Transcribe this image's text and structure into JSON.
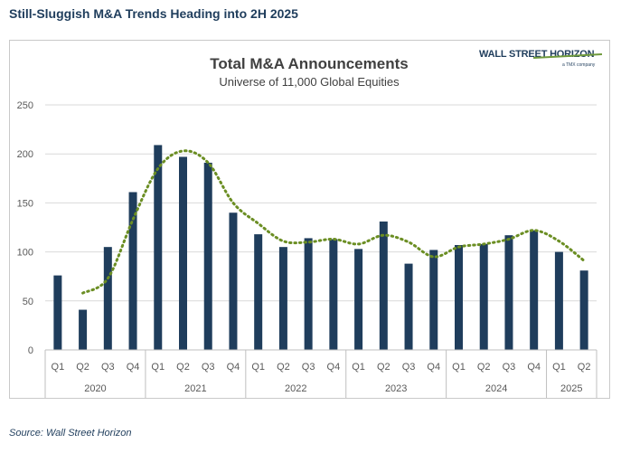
{
  "header": {
    "title": "Still-Sluggish M&A Trends Heading into 2H 2025"
  },
  "logo": {
    "main": "WALL STREET HORIZON",
    "sub": "a TMX company"
  },
  "footer": {
    "source": "Source: Wall Street Horizon"
  },
  "colors": {
    "bar": "#1f3d5c",
    "trend": "#6b8e23",
    "axis": "#bfbfbf",
    "grid": "#d9d9d9",
    "text": "#595959"
  },
  "chart_data": {
    "type": "bar",
    "title": "Total M&A Announcements",
    "subtitle": "Universe of 11,000 Global Equities",
    "ylim": [
      0,
      250
    ],
    "yticks": [
      0,
      50,
      100,
      150,
      200,
      250
    ],
    "grid": true,
    "categories": [
      "Q1",
      "Q2",
      "Q3",
      "Q4",
      "Q1",
      "Q2",
      "Q3",
      "Q4",
      "Q1",
      "Q2",
      "Q3",
      "Q4",
      "Q1",
      "Q2",
      "Q3",
      "Q4",
      "Q1",
      "Q2",
      "Q3",
      "Q4",
      "Q1",
      "Q2"
    ],
    "groups": [
      {
        "label": "2020",
        "count": 4
      },
      {
        "label": "2021",
        "count": 4
      },
      {
        "label": "2022",
        "count": 4
      },
      {
        "label": "2023",
        "count": 4
      },
      {
        "label": "2024",
        "count": 4
      },
      {
        "label": "2025",
        "count": 2
      }
    ],
    "values": [
      76,
      41,
      105,
      161,
      209,
      197,
      191,
      140,
      118,
      105,
      114,
      113,
      103,
      131,
      88,
      102,
      107,
      108,
      117,
      122,
      100,
      81
    ],
    "trend": {
      "style": "dotted",
      "values": [
        null,
        58,
        73,
        133,
        185,
        203,
        191,
        150,
        129,
        111,
        110,
        113,
        108,
        117,
        110,
        95,
        105,
        108,
        113,
        122,
        111,
        91
      ]
    }
  }
}
